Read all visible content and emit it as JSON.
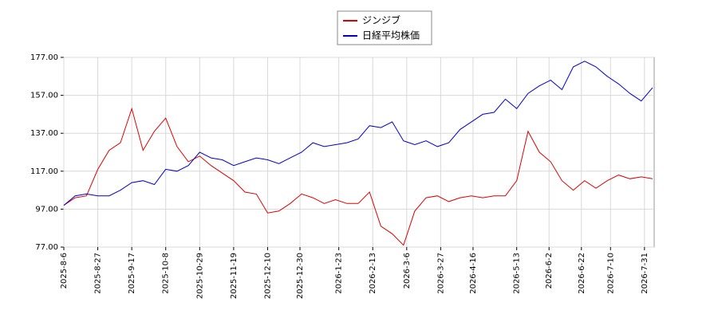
{
  "chart_data": {
    "type": "line",
    "x": [
      "2025-8-6",
      "2025-8-13",
      "2025-8-20",
      "2025-8-27",
      "2025-9-3",
      "2025-9-10",
      "2025-9-17",
      "2025-9-24",
      "2025-10-1",
      "2025-10-8",
      "2025-10-15",
      "2025-10-22",
      "2025-10-29",
      "2025-11-5",
      "2025-11-12",
      "2025-11-19",
      "2025-11-26",
      "2025-12-3",
      "2025-12-10",
      "2025-12-17",
      "2025-12-24",
      "2025-12-31",
      "2026-1-7",
      "2026-1-14",
      "2026-1-21",
      "2026-1-28",
      "2026-2-4",
      "2026-2-11",
      "2026-2-18",
      "2026-2-25",
      "2026-3-4",
      "2026-3-11",
      "2026-3-18",
      "2026-3-25",
      "2026-4-1",
      "2026-4-8",
      "2026-4-15",
      "2026-4-22",
      "2026-4-29",
      "2026-5-6",
      "2026-5-13",
      "2026-5-20",
      "2026-5-27",
      "2026-6-3",
      "2026-6-10",
      "2026-6-17",
      "2026-6-24",
      "2026-7-1",
      "2026-7-8",
      "2026-7-15",
      "2026-7-22",
      "2026-7-29",
      "2026-8-5"
    ],
    "series": [
      {
        "name": "ジンジブ",
        "color": "#dd0000",
        "values": [
          99,
          103,
          104,
          118,
          128,
          132,
          150,
          128,
          138,
          145,
          130,
          122,
          125,
          120,
          116,
          112,
          106,
          105,
          95,
          96,
          100,
          105,
          103,
          100,
          102,
          100,
          100,
          106,
          88,
          84,
          78,
          96,
          103,
          104,
          101,
          103,
          104,
          103,
          104,
          104,
          112,
          138,
          127,
          122,
          112,
          107,
          112,
          108,
          112,
          115,
          113,
          114,
          113
        ]
      },
      {
        "name": "日経平均株価",
        "color": "#0000cc",
        "values": [
          99,
          104,
          105,
          104,
          104,
          107,
          111,
          112,
          110,
          118,
          117,
          120,
          127,
          124,
          123,
          120,
          122,
          124,
          123,
          121,
          124,
          127,
          132,
          130,
          131,
          132,
          134,
          141,
          140,
          143,
          133,
          131,
          133,
          130,
          132,
          139,
          143,
          147,
          148,
          155,
          150,
          158,
          162,
          165,
          160,
          172,
          175,
          172,
          167,
          163,
          158,
          154,
          161
        ]
      }
    ],
    "xlim": [
      "2025-8-6",
      "2026-8-6"
    ],
    "xticks": [
      "2025-8-6",
      "2025-8-27",
      "2025-9-17",
      "2025-10-8",
      "2025-10-29",
      "2025-11-19",
      "2025-12-10",
      "2025-12-30",
      "2026-1-23",
      "2026-2-13",
      "2026-3-6",
      "2026-3-27",
      "2026-4-16",
      "2026-5-13",
      "2026-6-2",
      "2026-6-22",
      "2026-7-10",
      "2026-7-31"
    ],
    "ylim": [
      77,
      177
    ],
    "yticks": [
      {
        "value": 77,
        "label": "77.00"
      },
      {
        "value": 97,
        "label": "97.00"
      },
      {
        "value": 117,
        "label": "117.00"
      },
      {
        "value": 137,
        "label": "137.00"
      },
      {
        "value": 157,
        "label": "157.00"
      },
      {
        "value": 177,
        "label": "177.00"
      }
    ],
    "grid": true,
    "legend": "top"
  }
}
